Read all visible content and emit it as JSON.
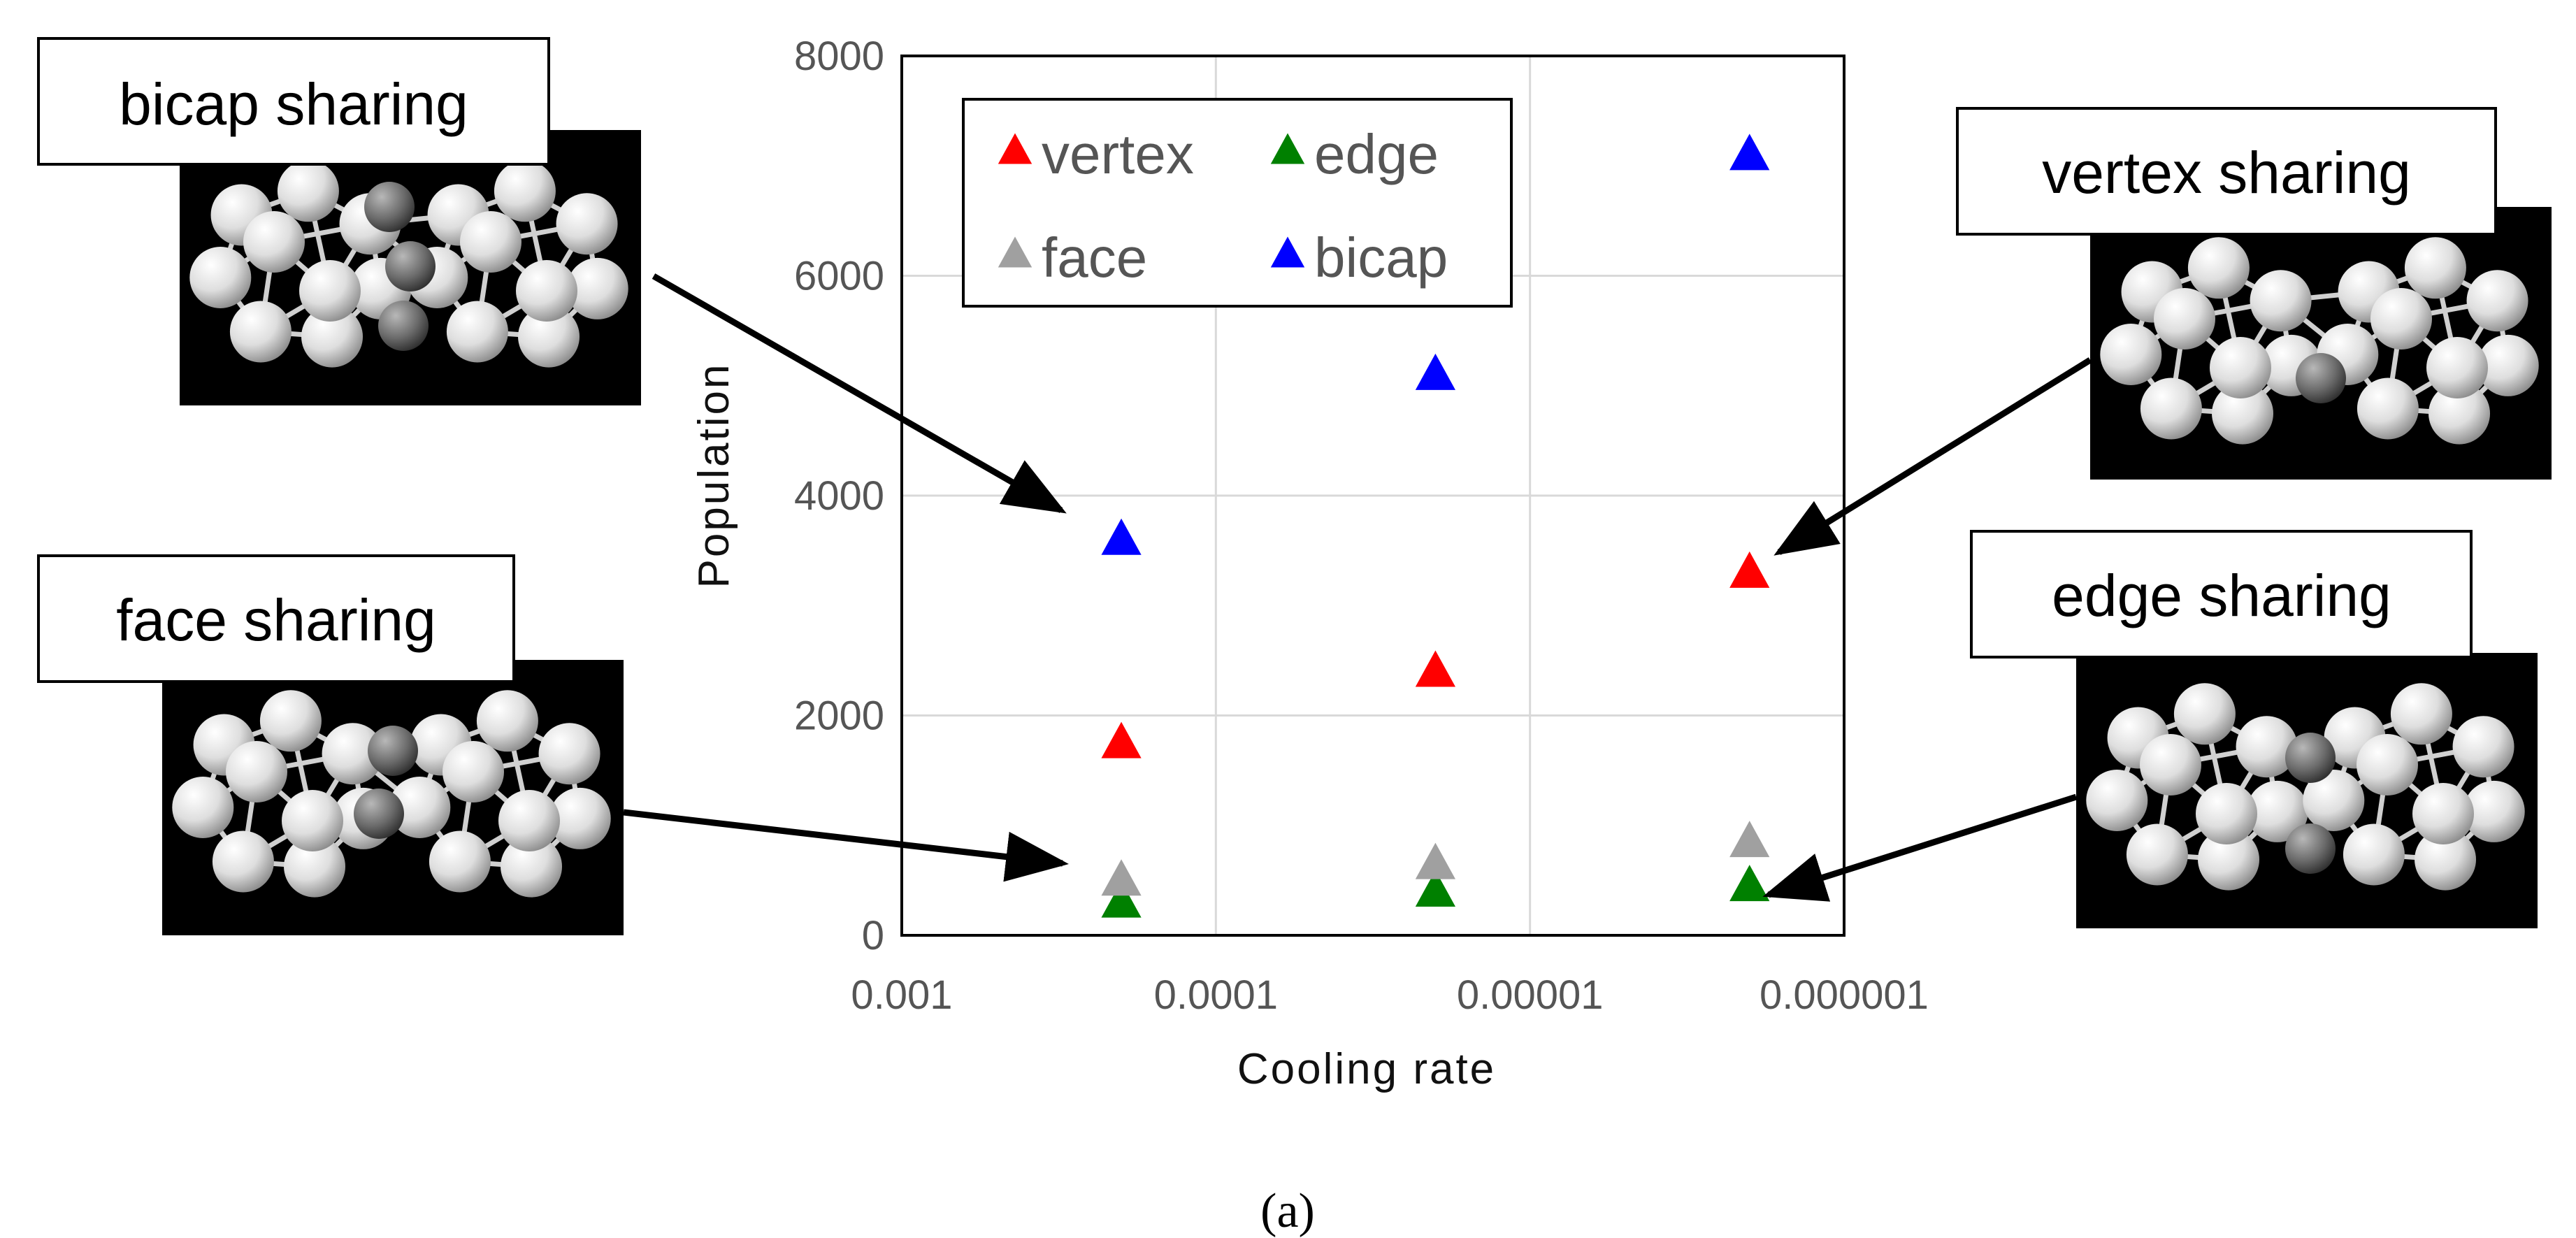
{
  "chart_data": {
    "type": "scatter",
    "title": "",
    "xlabel": "Cooling rate",
    "ylabel": "Population",
    "x_scale": "log",
    "x_reversed": true,
    "xlim": [
      0.001,
      1e-06
    ],
    "ylim": [
      0,
      8000
    ],
    "x_ticks": [
      "0.001",
      "0.0001",
      "0.00001",
      "0.000001"
    ],
    "y_ticks": [
      "0",
      "2000",
      "4000",
      "6000",
      "8000"
    ],
    "grid": true,
    "legend_position": "top-left",
    "marker": "triangle",
    "x": [
      0.0002,
      2e-05,
      2e-06
    ],
    "series": [
      {
        "name": "vertex",
        "color": "#ff0000",
        "values": [
          1750,
          2400,
          3300
        ]
      },
      {
        "name": "edge",
        "color": "#008000",
        "values": [
          300,
          400,
          450
        ]
      },
      {
        "name": "face",
        "color": "#a0a0a0",
        "values": [
          500,
          650,
          850
        ]
      },
      {
        "name": "bicap",
        "color": "#0000ff",
        "values": [
          3600,
          5100,
          7100
        ]
      }
    ]
  },
  "callouts": [
    {
      "id": "bicap",
      "label": "bicap sharing",
      "target_series": "bicap",
      "target_index": 0
    },
    {
      "id": "face",
      "label": "face sharing",
      "target_series": "face",
      "target_index": 0
    },
    {
      "id": "vertex",
      "label": "vertex sharing",
      "target_series": "vertex",
      "target_index": 2
    },
    {
      "id": "edge",
      "label": "edge sharing",
      "target_series": "edge",
      "target_index": 2
    }
  ],
  "panel_label": "(a)"
}
